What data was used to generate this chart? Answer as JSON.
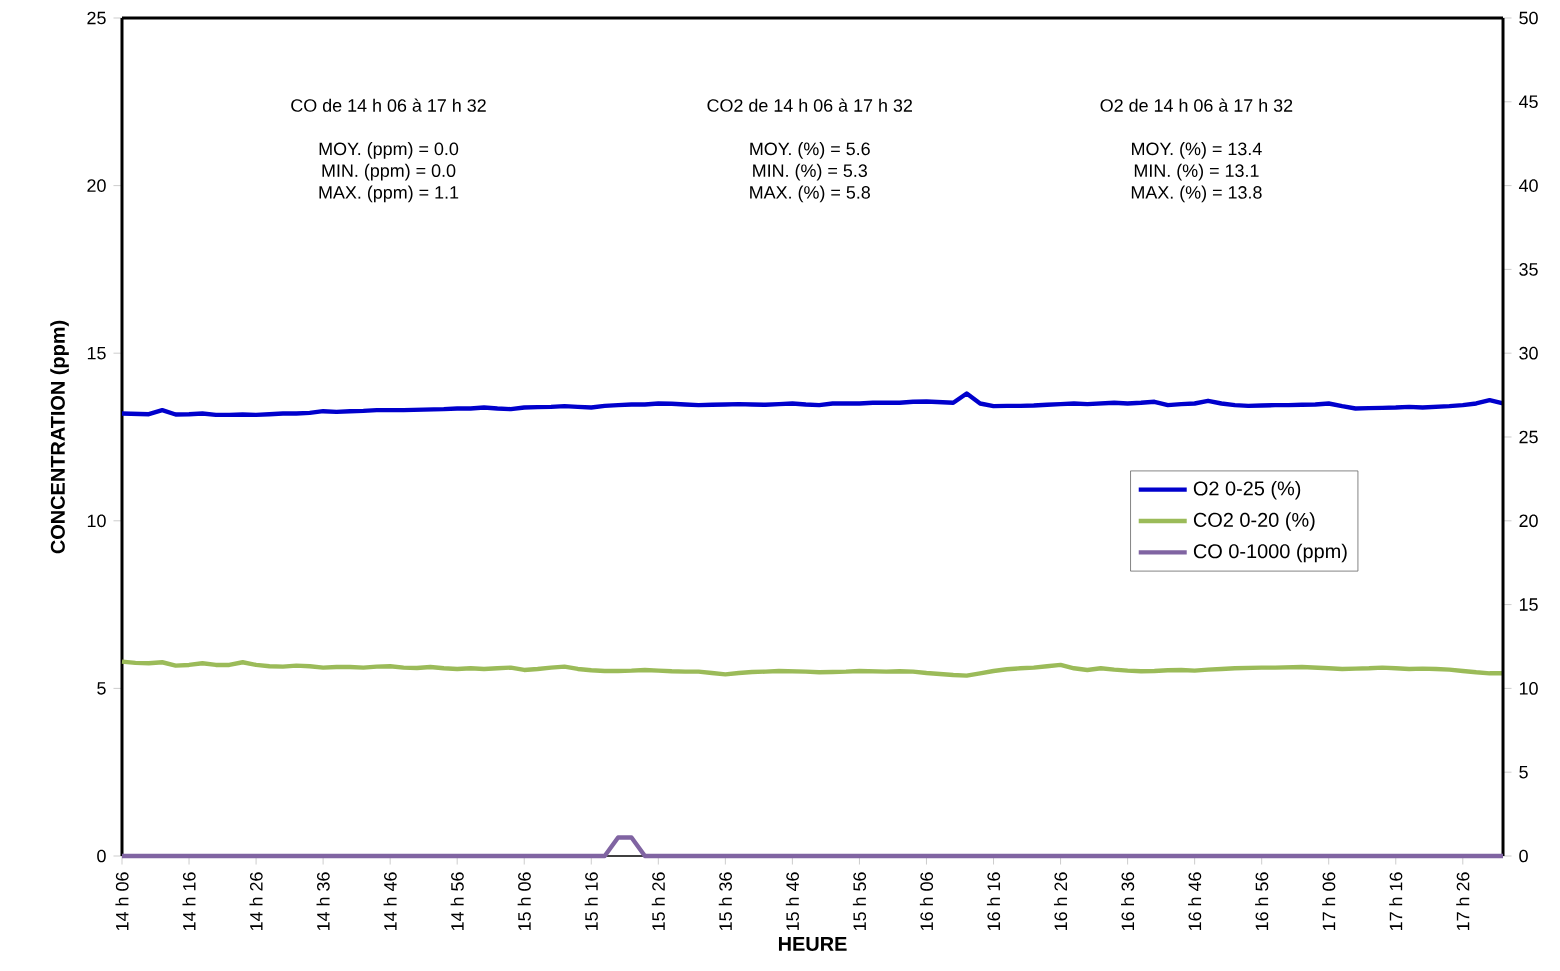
{
  "chart_data": {
    "type": "line",
    "xlabel": "HEURE",
    "ylabel": "CONCENTRATION (ppm)",
    "categories": [
      "14 h 06",
      null,
      null,
      null,
      null,
      "14 h 16",
      null,
      null,
      null,
      null,
      "14 h 26",
      null,
      null,
      null,
      null,
      "14 h 36",
      null,
      null,
      null,
      null,
      "14 h 46",
      null,
      null,
      null,
      null,
      "14 h 56",
      null,
      null,
      null,
      null,
      "15 h 06",
      null,
      null,
      null,
      null,
      "15 h 16",
      null,
      null,
      null,
      null,
      "15 h 26",
      null,
      null,
      null,
      null,
      "15 h 36",
      null,
      null,
      null,
      null,
      "15 h 46",
      null,
      null,
      null,
      null,
      "15 h 56",
      null,
      null,
      null,
      null,
      "16 h 06",
      null,
      null,
      null,
      null,
      "16 h 16",
      null,
      null,
      null,
      null,
      "16 h 26",
      null,
      null,
      null,
      null,
      "16 h 36",
      null,
      null,
      null,
      null,
      "16 h 46",
      null,
      null,
      null,
      null,
      "16 h 56",
      null,
      null,
      null,
      null,
      "17 h 06",
      null,
      null,
      null,
      null,
      "17 h 16",
      null,
      null,
      null,
      null,
      "17 h 26",
      null,
      null,
      null
    ],
    "series": [
      {
        "name": "O2 0-25 (%)",
        "color": "#0000cc",
        "values": [
          13.2,
          13.19,
          13.18,
          13.3,
          13.17,
          13.18,
          13.2,
          13.16,
          13.16,
          13.17,
          13.16,
          13.18,
          13.2,
          13.2,
          13.22,
          13.27,
          13.25,
          13.27,
          13.28,
          13.3,
          13.3,
          13.3,
          13.31,
          13.32,
          13.33,
          13.35,
          13.35,
          13.38,
          13.35,
          13.33,
          13.38,
          13.39,
          13.4,
          13.42,
          13.4,
          13.38,
          13.43,
          13.45,
          13.47,
          13.47,
          13.5,
          13.49,
          13.47,
          13.45,
          13.46,
          13.47,
          13.48,
          13.47,
          13.46,
          13.48,
          13.5,
          13.47,
          13.45,
          13.5,
          13.5,
          13.5,
          13.52,
          13.52,
          13.52,
          13.55,
          13.56,
          13.54,
          13.52,
          13.8,
          13.5,
          13.42,
          13.43,
          13.43,
          13.44,
          13.46,
          13.48,
          13.5,
          13.48,
          13.5,
          13.52,
          13.5,
          13.52,
          13.55,
          13.45,
          13.48,
          13.5,
          13.58,
          13.5,
          13.45,
          13.43,
          13.44,
          13.45,
          13.45,
          13.46,
          13.47,
          13.5,
          13.42,
          13.35,
          13.36,
          13.37,
          13.38,
          13.4,
          13.38,
          13.4,
          13.42,
          13.45,
          13.5,
          13.6,
          13.5
        ]
      },
      {
        "name": "CO2 0-20 (%)",
        "color": "#9bbb59",
        "values": [
          5.8,
          5.76,
          5.75,
          5.78,
          5.68,
          5.7,
          5.75,
          5.7,
          5.7,
          5.78,
          5.7,
          5.66,
          5.65,
          5.68,
          5.66,
          5.62,
          5.64,
          5.64,
          5.62,
          5.65,
          5.66,
          5.62,
          5.61,
          5.64,
          5.6,
          5.58,
          5.6,
          5.58,
          5.6,
          5.62,
          5.55,
          5.58,
          5.62,
          5.65,
          5.58,
          5.54,
          5.52,
          5.52,
          5.53,
          5.55,
          5.53,
          5.51,
          5.5,
          5.5,
          5.46,
          5.42,
          5.46,
          5.49,
          5.5,
          5.52,
          5.51,
          5.5,
          5.48,
          5.49,
          5.5,
          5.52,
          5.51,
          5.5,
          5.51,
          5.5,
          5.46,
          5.43,
          5.4,
          5.38,
          5.45,
          5.52,
          5.57,
          5.6,
          5.62,
          5.66,
          5.7,
          5.6,
          5.55,
          5.6,
          5.56,
          5.53,
          5.51,
          5.52,
          5.54,
          5.55,
          5.53,
          5.56,
          5.58,
          5.6,
          5.61,
          5.62,
          5.62,
          5.63,
          5.64,
          5.62,
          5.6,
          5.58,
          5.59,
          5.6,
          5.62,
          5.6,
          5.58,
          5.59,
          5.58,
          5.56,
          5.52,
          5.48,
          5.45,
          5.45
        ]
      },
      {
        "name": "CO 0-1000 (ppm)",
        "color": "#8064a2",
        "axis": "y2",
        "values": [
          0,
          0,
          0,
          0,
          0,
          0,
          0,
          0,
          0,
          0,
          0,
          0,
          0,
          0,
          0,
          0,
          0,
          0,
          0,
          0,
          0,
          0,
          0,
          0,
          0,
          0,
          0,
          0,
          0,
          0,
          0,
          0,
          0,
          0,
          0,
          0,
          0,
          1.1,
          1.1,
          0,
          0,
          0,
          0,
          0,
          0,
          0,
          0,
          0,
          0,
          0,
          0,
          0,
          0,
          0,
          0,
          0,
          0,
          0,
          0,
          0,
          0,
          0,
          0,
          0,
          0,
          0,
          0,
          0,
          0,
          0,
          0,
          0,
          0,
          0,
          0,
          0,
          0,
          0,
          0,
          0,
          0,
          0,
          0,
          0,
          0,
          0,
          0,
          0,
          0,
          0,
          0,
          0,
          0,
          0,
          0,
          0,
          0,
          0,
          0,
          0,
          0,
          0,
          0,
          0
        ]
      }
    ],
    "ylim": [
      0,
      25
    ],
    "yticks": [
      0,
      5,
      10,
      15,
      20,
      25
    ],
    "y2lim": [
      0,
      50
    ],
    "y2ticks": [
      0,
      5,
      10,
      15,
      20,
      25,
      30,
      35,
      40,
      45,
      50
    ],
    "legend": "right",
    "annotations": [
      "CO de 14 h 06 à 17 h 32",
      "MOY. (ppm) = 0.0",
      "MIN. (ppm) = 0.0",
      "MAX. (ppm) = 1.1",
      "CO2 de 14 h 06 à 17 h 32",
      "MOY. (%) = 5.6",
      "MIN. (%) = 5.3",
      "MAX. (%) = 5.8",
      "O2 de 14 h 06 à 17 h 32",
      "MOY. (%) = 13.4",
      "MIN. (%) = 13.1",
      "MAX. (%) = 13.8"
    ]
  }
}
